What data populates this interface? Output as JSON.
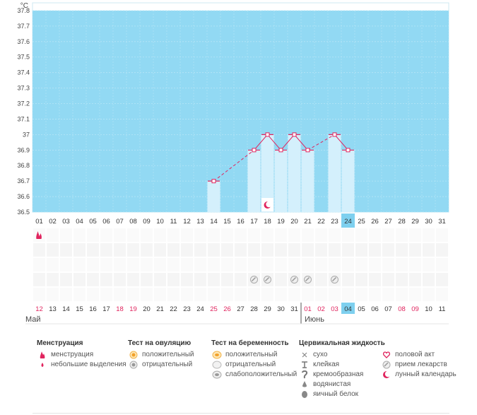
{
  "chart_data": {
    "type": "bar",
    "unit": "°C",
    "ylim": [
      36.5,
      37.85
    ],
    "yticks": [
      "37.8",
      "37.7",
      "37.6",
      "37.5",
      "37.4",
      "37.3",
      "37.2",
      "37.1",
      "37",
      "36.9",
      "36.8",
      "36.7",
      "36.6",
      "36.5"
    ],
    "x_top": [
      "01",
      "02",
      "03",
      "04",
      "05",
      "06",
      "07",
      "08",
      "09",
      "10",
      "11",
      "12",
      "13",
      "14",
      "15",
      "16",
      "17",
      "18",
      "19",
      "20",
      "21",
      "22",
      "23",
      "24",
      "25",
      "26",
      "27",
      "28",
      "29",
      "30",
      "31"
    ],
    "x_bottom": [
      "12",
      "13",
      "14",
      "15",
      "16",
      "17",
      "18",
      "19",
      "20",
      "21",
      "22",
      "23",
      "24",
      "25",
      "26",
      "27",
      "28",
      "29",
      "30",
      "31",
      "01",
      "02",
      "03",
      "04",
      "05",
      "06",
      "07",
      "08",
      "09",
      "10",
      "11"
    ],
    "x_bottom_red": [
      0,
      6,
      7,
      13,
      14,
      20,
      21,
      22,
      27,
      28
    ],
    "highlight_index": 23,
    "temps": [
      {
        "day": "14",
        "value": 36.7
      },
      {
        "day": "17",
        "value": 36.9
      },
      {
        "day": "18",
        "value": 37.0
      },
      {
        "day": "19",
        "value": 36.9
      },
      {
        "day": "20",
        "value": 37.0
      },
      {
        "day": "21",
        "value": 36.9
      },
      {
        "day": "23",
        "value": 37.0
      },
      {
        "day": "24",
        "value": 36.9
      }
    ],
    "moon_day_index": 17,
    "menstruation_day_index": 0,
    "medication_day_indices": [
      16,
      17,
      19,
      20,
      22
    ],
    "months": [
      {
        "label": "Май",
        "start_index": 0
      },
      {
        "label": "Июнь",
        "start_index": 20
      }
    ]
  },
  "legend": {
    "menstruation": {
      "title": "Менструация",
      "items": [
        "менструация",
        "небольшие выделения"
      ]
    },
    "ovulation": {
      "title": "Тест на овуляцию",
      "items": [
        "положительный",
        "отрицательный"
      ]
    },
    "pregnancy": {
      "title": "Тест на беременность",
      "items": [
        "положительный",
        "отрицательный",
        "слабоположительный"
      ]
    },
    "cervical": {
      "title": "Цервикальная жидкость",
      "items": [
        "сухо",
        "клейкая",
        "кремообразная",
        "водянистая",
        "яичный белок"
      ]
    },
    "other": {
      "items": [
        "половой акт",
        "прием лекарств",
        "лунный календарь"
      ]
    }
  },
  "colors": {
    "plot_bg": "#92d9f3",
    "bar": "#d4f0fc",
    "line": "#e0245e",
    "highlight": "#7ed0ef",
    "red_text": "#e0245e"
  }
}
